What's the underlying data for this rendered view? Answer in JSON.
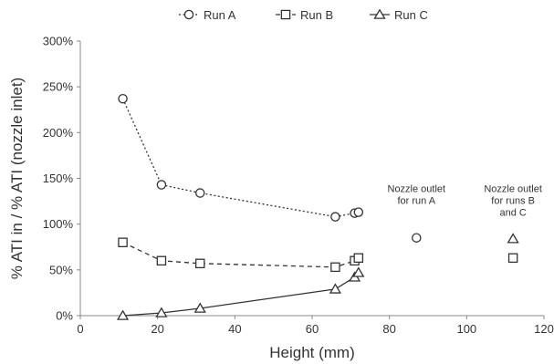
{
  "chart_data": {
    "type": "scatter",
    "xlabel": "Height (mm)",
    "ylabel": "% ATI in / % ATI (nozzle inlet)",
    "xlim": [
      0,
      120
    ],
    "ylim": [
      0,
      300
    ],
    "x_ticks": [
      0,
      20,
      40,
      60,
      80,
      100,
      120
    ],
    "x_tick_labels": [
      "0",
      "20",
      "40",
      "60",
      "80",
      "100",
      "120"
    ],
    "y_ticks": [
      0,
      50,
      100,
      150,
      200,
      250,
      300
    ],
    "y_tick_labels": [
      "0%",
      "50%",
      "100%",
      "150%",
      "200%",
      "250%",
      "300%"
    ],
    "grid": false,
    "legend_position": "top",
    "series": [
      {
        "name": "Run A",
        "marker": "circle",
        "line": "dotted",
        "points": [
          [
            11,
            237
          ],
          [
            21,
            143
          ],
          [
            31,
            134
          ],
          [
            66,
            108
          ],
          [
            71,
            112
          ],
          [
            72,
            113
          ]
        ]
      },
      {
        "name": "Run B",
        "marker": "square",
        "line": "dashed",
        "points": [
          [
            11,
            80
          ],
          [
            21,
            60
          ],
          [
            31,
            57
          ],
          [
            66,
            53
          ],
          [
            71,
            60
          ],
          [
            72,
            63
          ]
        ]
      },
      {
        "name": "Run C",
        "marker": "triangle",
        "line": "solid",
        "points": [
          [
            11,
            0
          ],
          [
            21,
            3
          ],
          [
            31,
            8
          ],
          [
            66,
            29
          ],
          [
            71,
            42
          ],
          [
            72,
            47
          ]
        ]
      }
    ],
    "nozzle_outlets": [
      {
        "series": "Run A",
        "marker": "circle",
        "x": 87,
        "y": 85
      },
      {
        "series": "Run B",
        "marker": "square",
        "x": 112,
        "y": 63
      },
      {
        "series": "Run C",
        "marker": "triangle",
        "x": 112,
        "y": 84
      }
    ],
    "annotations": [
      {
        "name": "annotation-run-a",
        "lines": [
          "Nozzle outlet",
          "for run A"
        ],
        "x": 87,
        "y": 135
      },
      {
        "name": "annotation-runs-b-c",
        "lines": [
          "Nozzle outlet",
          "for runs B",
          "and C"
        ],
        "x": 112,
        "y": 135
      }
    ]
  },
  "colors": {
    "axis": "#888888",
    "series": "#333333",
    "background": "#ffffff"
  }
}
